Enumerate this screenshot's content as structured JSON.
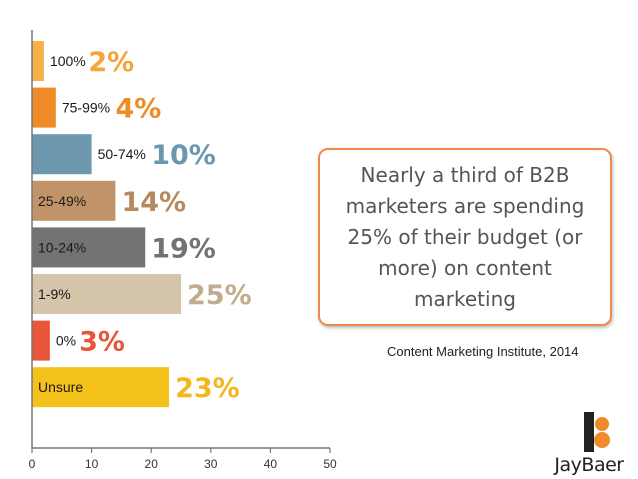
{
  "chart_data": {
    "type": "bar",
    "orientation": "horizontal",
    "categories": [
      "100%",
      "75-99%",
      "50-74%",
      "25-49%",
      "10-24%",
      "1-9%",
      "0%",
      "Unsure"
    ],
    "values": [
      2,
      4,
      10,
      14,
      19,
      25,
      3,
      23
    ],
    "value_labels": [
      "2%",
      "4%",
      "10%",
      "14%",
      "19%",
      "25%",
      "3%",
      "23%"
    ],
    "colors": [
      "#f7b14a",
      "#ef8c27",
      "#6c97ad",
      "#c09468",
      "#737373",
      "#d4c5ab",
      "#e8553a",
      "#f5c21b"
    ],
    "xlim": [
      0,
      50
    ],
    "x_ticks": [
      0,
      10,
      20,
      30,
      40,
      50
    ],
    "grid": false
  },
  "callout": {
    "text": "Nearly a third of B2B marketers are spending 25% of their budget (or more) on content marketing"
  },
  "source": "Content Marketing Institute, 2014",
  "logo": {
    "text_first": "Jay",
    "text_second": "Baer",
    "icon": "jaybaer-logo-icon",
    "accent_color": "#f08a2b"
  }
}
